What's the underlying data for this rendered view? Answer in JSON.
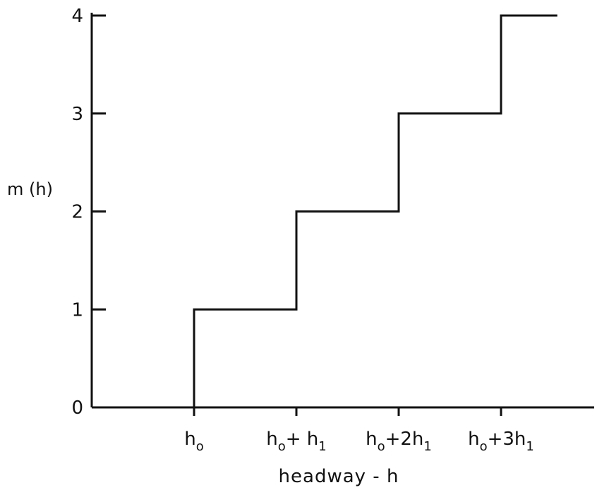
{
  "chart_data": {
    "type": "line",
    "step": true,
    "ylabel": "m (h)",
    "xlabel": "headway - h",
    "ylim": [
      0,
      4
    ],
    "yticks": [
      "0",
      "1",
      "2",
      "3",
      "4"
    ],
    "x": [
      0,
      1,
      2,
      3
    ],
    "xticks": [
      {
        "main": "h",
        "sub": "o",
        "rest": "",
        "sub2": ""
      },
      {
        "main": "h",
        "sub": "o",
        "rest": "+ h",
        "sub2": "1"
      },
      {
        "main": "h",
        "sub": "o",
        "rest": "+2h",
        "sub2": "1"
      },
      {
        "main": "h",
        "sub": "o",
        "rest": "+3h",
        "sub2": "1"
      }
    ],
    "series": [
      {
        "values": [
          1,
          2,
          3,
          4
        ]
      }
    ],
    "x_extent": [
      -1,
      3.55
    ]
  }
}
